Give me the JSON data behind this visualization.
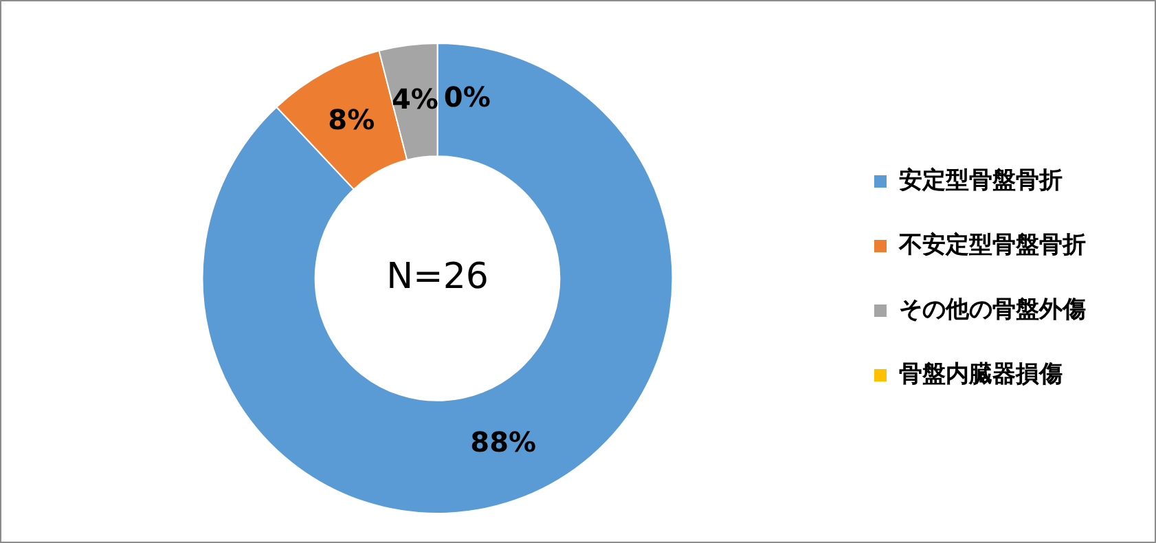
{
  "chart_data": {
    "type": "donut",
    "categories": [
      "安定型骨盤骨折",
      "不安定型骨盤骨折",
      "その他の骨盤外傷",
      "骨盤内臓器損傷"
    ],
    "values": [
      88,
      8,
      4,
      0
    ],
    "colors": [
      "#5b9bd5",
      "#ed7d31",
      "#a5a5a5",
      "#ffc000"
    ],
    "value_labels": [
      "88%",
      "8%",
      "4%",
      "0%"
    ],
    "annotations": [
      "N=26"
    ],
    "legend": "right"
  }
}
